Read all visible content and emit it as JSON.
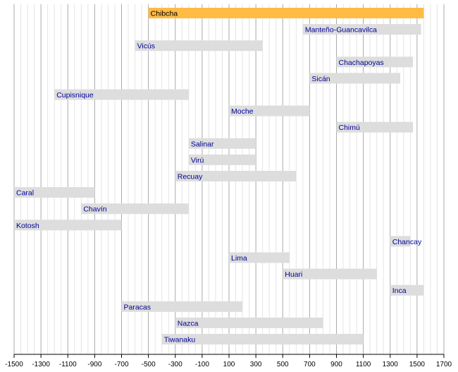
{
  "chart_data": {
    "type": "bar",
    "orientation": "horizontal-timeline",
    "xlim": [
      -1500,
      1700
    ],
    "ticks": [
      -1500,
      -1300,
      -1100,
      -900,
      -700,
      -500,
      -300,
      -100,
      100,
      300,
      500,
      700,
      900,
      1100,
      1300,
      1500,
      1700
    ],
    "tick_labels": [
      "-1500",
      "-1300",
      "-1100",
      "-900",
      "-700",
      "-500",
      "-300",
      "-100",
      "100",
      "300",
      "500",
      "700",
      "900",
      "1100",
      "1300",
      "1500",
      "1700"
    ],
    "minor_grid_step": 50,
    "grid": true,
    "colors": {
      "bar": "#dddddd",
      "highlight": "#ffbb44",
      "label": "#000099",
      "major_grid": "#aaaaaa",
      "minor_grid": "#e4e4e4",
      "axis": "#000000"
    },
    "series": [
      {
        "label": "Chibcha",
        "start": -500,
        "end": 1550,
        "highlight": true
      },
      {
        "label": "Manteño-Guancavilca",
        "start": 650,
        "end": 1530
      },
      {
        "label": "Vicús",
        "start": -600,
        "end": 350
      },
      {
        "label": "Chachapoyas",
        "start": 900,
        "end": 1470
      },
      {
        "label": "Sicán",
        "start": 700,
        "end": 1375
      },
      {
        "label": "Cupisnique",
        "start": -1200,
        "end": -200
      },
      {
        "label": "Moche",
        "start": 100,
        "end": 700
      },
      {
        "label": "Chimú",
        "start": 900,
        "end": 1470
      },
      {
        "label": "Salinar",
        "start": -200,
        "end": 300
      },
      {
        "label": "Virú",
        "start": -200,
        "end": 300
      },
      {
        "label": "Recuay",
        "start": -300,
        "end": 600
      },
      {
        "label": "Caral",
        "start": -1500,
        "end": -900
      },
      {
        "label": "Chavín",
        "start": -1000,
        "end": -200
      },
      {
        "label": "Kotosh",
        "start": -1500,
        "end": -700
      },
      {
        "label": "Chancay",
        "start": 1300,
        "end": 1450
      },
      {
        "label": "Lima",
        "start": 100,
        "end": 550
      },
      {
        "label": "Huari",
        "start": 500,
        "end": 1200
      },
      {
        "label": "Inca",
        "start": 1300,
        "end": 1550
      },
      {
        "label": "Paracas",
        "start": -700,
        "end": 200
      },
      {
        "label": "Nazca",
        "start": -300,
        "end": 800
      },
      {
        "label": "Tiwanaku",
        "start": -400,
        "end": 1100
      }
    ]
  }
}
